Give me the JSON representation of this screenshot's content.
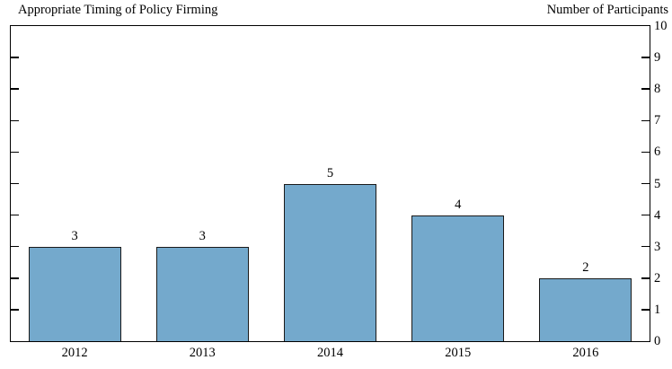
{
  "header": {
    "title": "Appropriate Timing of Policy Firming",
    "right_axis_title": "Number of Participants"
  },
  "colors": {
    "bar_fill": "#74a9cc",
    "bar_border": "#1a1a1a",
    "axis": "#000000",
    "background": "#ffffff"
  },
  "chart_data": {
    "type": "bar",
    "title": "Appropriate Timing of Policy Firming",
    "categories": [
      "2012",
      "2013",
      "2014",
      "2015",
      "2016"
    ],
    "values": [
      3,
      3,
      5,
      4,
      2
    ],
    "bar_value_labels": [
      "3",
      "3",
      "5",
      "4",
      "2"
    ],
    "xlabel": "",
    "ylabel": "Number of Participants",
    "ylim": [
      0,
      10
    ],
    "yticks": [
      0,
      1,
      2,
      3,
      4,
      5,
      6,
      7,
      8,
      9,
      10
    ],
    "ytick_labels": [
      "0",
      "1",
      "2",
      "3",
      "4",
      "5",
      "6",
      "7",
      "8",
      "9",
      "10"
    ],
    "y_axis_labels_side": "right",
    "tick_marks_sides": [
      "left",
      "right"
    ],
    "grid": false,
    "legend": false
  }
}
